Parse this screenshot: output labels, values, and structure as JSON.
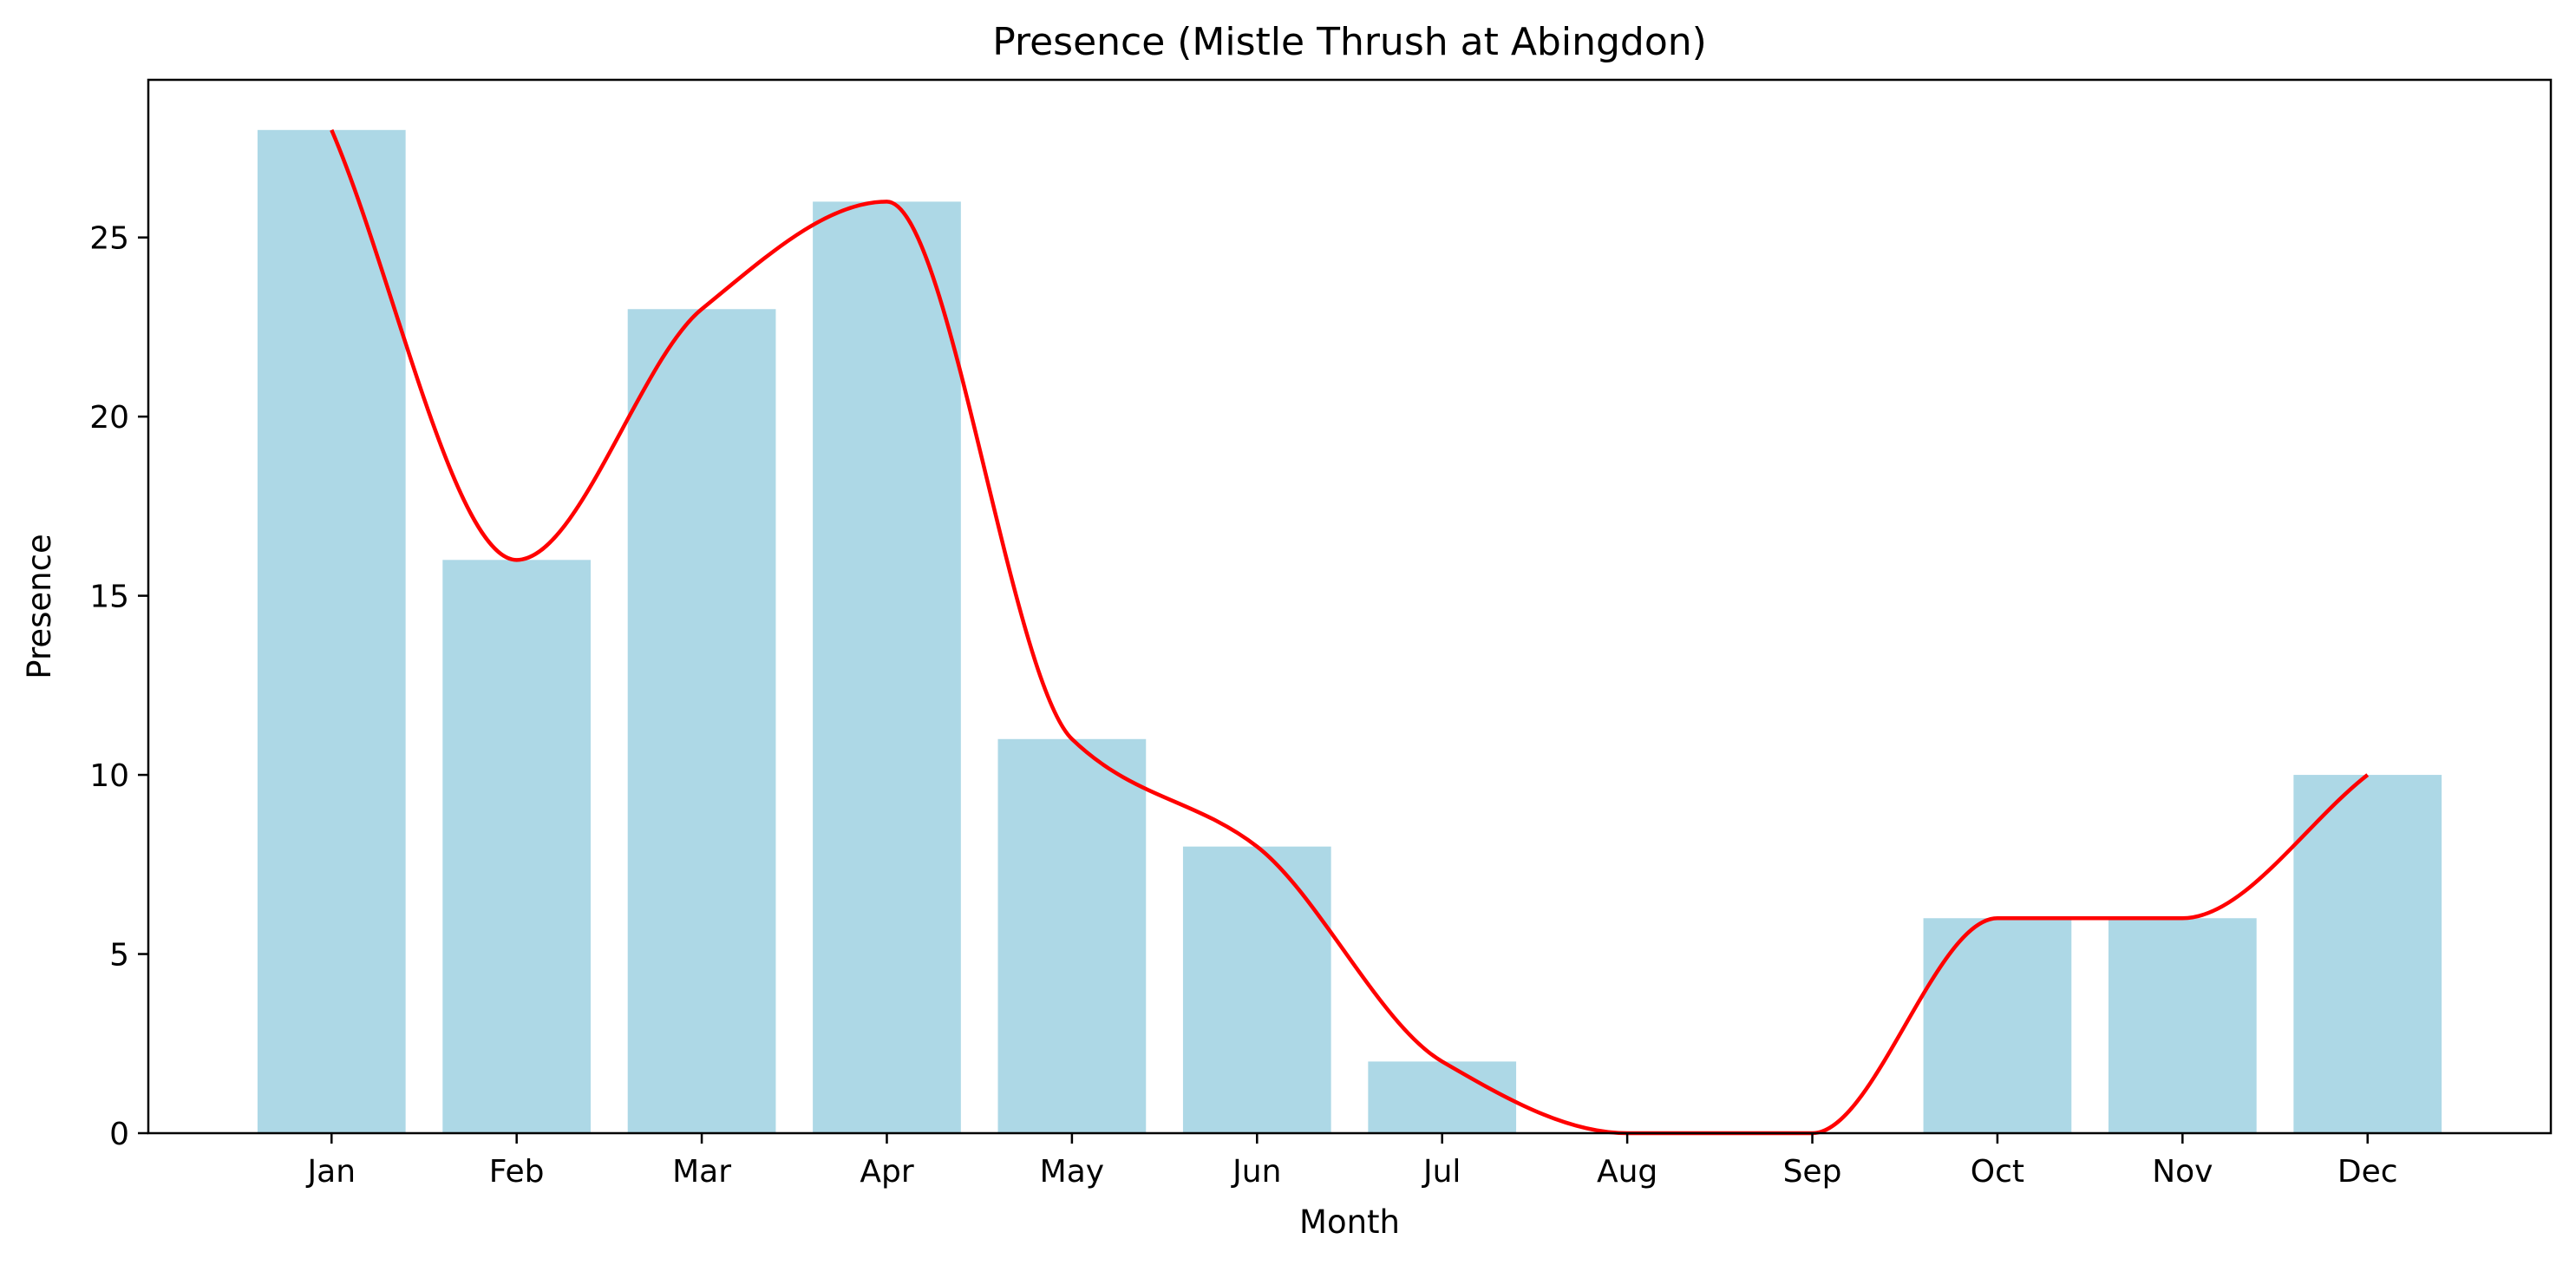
{
  "chart_data": {
    "type": "bar",
    "title": "Presence (Mistle Thrush at Abingdon)",
    "xlabel": "Month",
    "ylabel": "Presence",
    "categories": [
      "Jan",
      "Feb",
      "Mar",
      "Apr",
      "May",
      "Jun",
      "Jul",
      "Aug",
      "Sep",
      "Oct",
      "Nov",
      "Dec"
    ],
    "values": [
      28,
      16,
      23,
      26,
      11,
      8,
      2,
      0,
      0,
      6,
      6,
      10
    ],
    "ylim": [
      0,
      29.4
    ],
    "yticks": [
      0,
      5,
      10,
      15,
      20,
      25
    ],
    "grid": false,
    "bar_color": "#add8e6",
    "line_overlay": {
      "type": "smooth-line",
      "color": "#ff0000",
      "values": [
        28,
        16,
        23,
        26,
        11,
        8,
        2,
        0,
        0,
        6,
        6,
        10
      ]
    }
  }
}
